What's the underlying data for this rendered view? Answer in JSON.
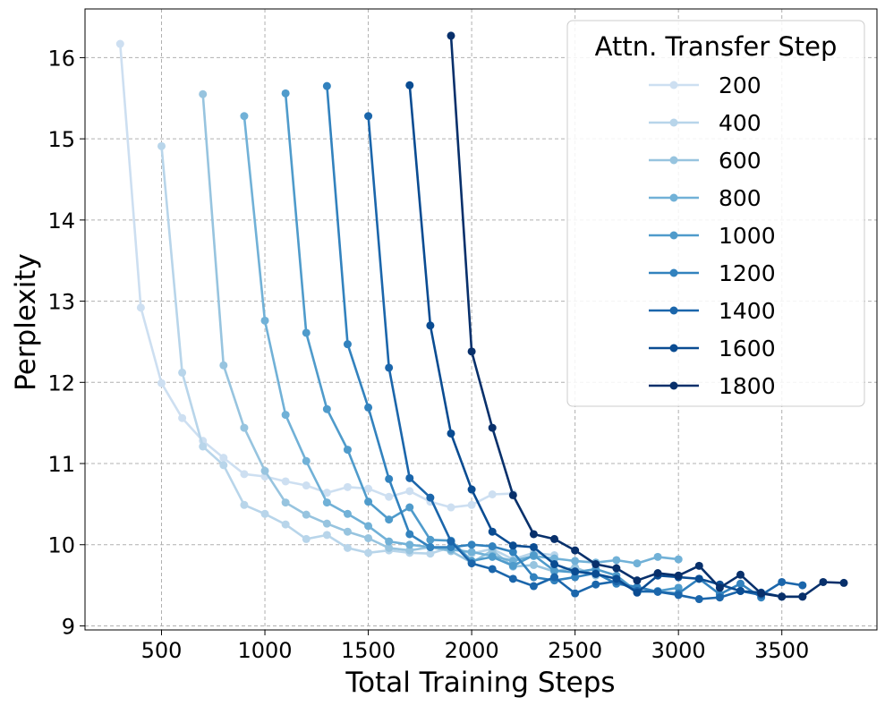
{
  "chart_data": {
    "type": "line",
    "xlabel": "Total Training Steps",
    "ylabel": "Perplexity",
    "xlim": [
      130,
      3960
    ],
    "ylim": [
      8.95,
      16.6
    ],
    "xticks": [
      500,
      1000,
      1500,
      2000,
      2500,
      3000,
      3500
    ],
    "yticks": [
      9,
      10,
      11,
      12,
      13,
      14,
      15,
      16
    ],
    "grid": true,
    "legend": {
      "title": "Attn. Transfer Step",
      "placement": "top-right"
    },
    "series": [
      {
        "name": "200",
        "color": "#cddff1",
        "x": [
          300,
          400,
          500,
          600,
          700,
          800,
          900,
          1000,
          1100,
          1200,
          1300,
          1400,
          1500,
          1600,
          1700,
          1800,
          1900,
          2000,
          2100,
          2200
        ],
        "y": [
          16.17,
          12.92,
          11.99,
          11.56,
          11.28,
          11.07,
          10.87,
          10.84,
          10.78,
          10.73,
          10.64,
          10.71,
          10.69,
          10.59,
          10.66,
          10.53,
          10.46,
          10.49,
          10.62,
          10.63
        ]
      },
      {
        "name": "400",
        "color": "#b8d5ea",
        "x": [
          500,
          600,
          700,
          800,
          900,
          1000,
          1100,
          1200,
          1300,
          1400,
          1500,
          1600,
          1700,
          1800,
          1900,
          2000,
          2100,
          2200,
          2300,
          2400
        ],
        "y": [
          14.91,
          12.12,
          11.21,
          10.98,
          10.49,
          10.38,
          10.25,
          10.07,
          10.12,
          9.96,
          9.9,
          9.93,
          9.9,
          9.89,
          9.97,
          9.89,
          9.95,
          9.82,
          9.9,
          9.87
        ]
      },
      {
        "name": "600",
        "color": "#97c4df",
        "x": [
          700,
          800,
          900,
          1000,
          1100,
          1200,
          1300,
          1400,
          1500,
          1600,
          1700,
          1800,
          1900,
          2000,
          2100,
          2200,
          2300,
          2400,
          2500,
          2600
        ],
        "y": [
          15.55,
          12.21,
          11.44,
          10.91,
          10.52,
          10.37,
          10.26,
          10.16,
          10.08,
          9.96,
          9.93,
          9.97,
          9.92,
          9.78,
          9.93,
          9.73,
          9.75,
          9.67,
          9.72,
          9.62
        ]
      },
      {
        "name": "800",
        "color": "#71b1d7",
        "x": [
          900,
          1000,
          1100,
          1200,
          1300,
          1400,
          1500,
          1600,
          1700,
          1800,
          1900,
          2000,
          2100,
          2200,
          2300,
          2400,
          2500,
          2600,
          2700,
          2800,
          2900,
          3000
        ],
        "y": [
          15.28,
          12.76,
          11.6,
          11.03,
          10.52,
          10.38,
          10.23,
          10.04,
          10.0,
          9.97,
          9.94,
          9.91,
          9.86,
          9.8,
          9.86,
          9.83,
          9.8,
          9.78,
          9.81,
          9.77,
          9.85,
          9.82
        ]
      },
      {
        "name": "1000",
        "color": "#4f9bcb",
        "x": [
          1100,
          1200,
          1300,
          1400,
          1500,
          1600,
          1700,
          1800,
          1900,
          2000,
          2100,
          2200,
          2300,
          2400,
          2500,
          2600,
          2700,
          2800,
          2900,
          3000
        ],
        "y": [
          15.56,
          12.61,
          11.67,
          11.17,
          10.53,
          10.31,
          10.46,
          10.06,
          10.05,
          9.8,
          9.85,
          9.74,
          9.87,
          9.68,
          9.66,
          9.7,
          9.62,
          9.42,
          9.43,
          9.47
        ]
      },
      {
        "name": "1200",
        "color": "#3282be",
        "x": [
          1300,
          1400,
          1500,
          1600,
          1700,
          1800,
          1900,
          2000,
          2100,
          2200,
          2300,
          2400,
          2500,
          2600,
          2700,
          2800,
          2900,
          3000,
          3100,
          3200,
          3300,
          3400
        ],
        "y": [
          15.65,
          12.47,
          11.69,
          10.81,
          10.13,
          9.97,
          9.97,
          10.0,
          9.98,
          9.91,
          9.6,
          9.56,
          9.6,
          9.65,
          9.52,
          9.48,
          9.42,
          9.4,
          9.58,
          9.39,
          9.52,
          9.35
        ]
      },
      {
        "name": "1400",
        "color": "#1b66ab",
        "x": [
          1500,
          1600,
          1700,
          1800,
          1900,
          2000,
          2100,
          2200,
          2300,
          2400,
          2500,
          2600,
          2700,
          2800,
          2900,
          3000,
          3100,
          3200,
          3300,
          3400,
          3500,
          3600
        ],
        "y": [
          15.28,
          12.18,
          10.82,
          10.58,
          10.04,
          9.77,
          9.7,
          9.58,
          9.49,
          9.6,
          9.4,
          9.51,
          9.55,
          9.43,
          9.42,
          9.38,
          9.33,
          9.35,
          9.43,
          9.38,
          9.54,
          9.5
        ]
      },
      {
        "name": "1600",
        "color": "#0a4c92",
        "x": [
          1700,
          1800,
          1900,
          2000,
          2100,
          2200,
          2300,
          2400,
          2500,
          2600,
          2700,
          2800,
          2900,
          3000,
          3100,
          3200,
          3300,
          3400,
          3500,
          3600
        ],
        "y": [
          15.66,
          12.7,
          11.37,
          10.68,
          10.16,
          9.99,
          9.97,
          9.76,
          9.67,
          9.64,
          9.58,
          9.41,
          9.62,
          9.6,
          9.58,
          9.51,
          9.43,
          9.41,
          9.36,
          9.36
        ]
      },
      {
        "name": "1800",
        "color": "#08306b",
        "x": [
          1900,
          2000,
          2100,
          2200,
          2300,
          2400,
          2500,
          2600,
          2700,
          2800,
          2900,
          3000,
          3100,
          3200,
          3300,
          3400,
          3500,
          3600,
          3700,
          3800
        ],
        "y": [
          16.27,
          12.38,
          11.44,
          10.61,
          10.13,
          10.07,
          9.93,
          9.76,
          9.71,
          9.56,
          9.65,
          9.62,
          9.74,
          9.47,
          9.63,
          9.4,
          9.36,
          9.36,
          9.54,
          9.53
        ]
      }
    ]
  }
}
